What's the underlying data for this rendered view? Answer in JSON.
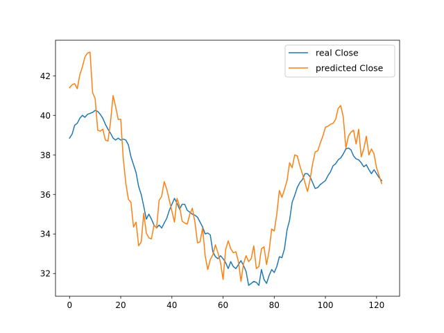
{
  "chart_data": {
    "type": "line",
    "xlim": [
      -5.5,
      129
    ],
    "ylim": [
      30.85,
      43.8
    ],
    "x_ticks": [
      0,
      20,
      40,
      60,
      80,
      100,
      120
    ],
    "y_ticks": [
      32,
      34,
      36,
      38,
      40,
      42
    ],
    "grid": false,
    "legend_position": "top-right",
    "series": [
      {
        "name": "real Close",
        "color": "#1f77b4",
        "values": [
          38.85,
          39.05,
          39.5,
          39.6,
          39.85,
          40.0,
          39.9,
          40.05,
          40.1,
          40.15,
          40.25,
          40.2,
          40.05,
          39.85,
          39.55,
          39.3,
          39.1,
          38.85,
          38.75,
          38.85,
          38.75,
          38.8,
          38.75,
          38.5,
          37.9,
          37.5,
          37.1,
          36.4,
          36.0,
          35.4,
          34.75,
          35.0,
          34.75,
          34.45,
          34.3,
          34.45,
          34.3,
          34.55,
          34.8,
          35.2,
          35.5,
          35.8,
          35.55,
          35.25,
          35.5,
          35.5,
          35.2,
          35.1,
          35.0,
          34.95,
          34.85,
          34.6,
          34.35,
          34.0,
          34.05,
          33.95,
          33.1,
          32.85,
          32.75,
          32.9,
          32.75,
          32.55,
          32.25,
          32.6,
          32.35,
          32.25,
          32.45,
          32.65,
          32.4,
          32.1,
          31.4,
          31.5,
          31.6,
          31.55,
          31.4,
          32.2,
          31.7,
          31.5,
          31.9,
          32.2,
          32.05,
          32.35,
          32.85,
          32.8,
          33.25,
          34.2,
          34.7,
          35.6,
          35.95,
          36.35,
          36.6,
          36.75,
          37.05,
          37.05,
          36.9,
          36.6,
          36.3,
          36.35,
          36.5,
          36.6,
          36.7,
          36.95,
          37.15,
          37.45,
          37.55,
          37.75,
          37.85,
          38.05,
          38.3,
          38.35,
          38.25,
          37.95,
          37.8,
          37.75,
          37.6,
          37.4,
          37.5,
          37.25,
          37.05,
          37.25,
          37.05,
          36.85,
          36.7
        ]
      },
      {
        "name": "predicted Close",
        "color": "#ff7f0e",
        "values": [
          41.4,
          41.55,
          41.6,
          41.35,
          42.05,
          42.45,
          42.95,
          43.15,
          43.2,
          41.15,
          40.85,
          39.25,
          39.2,
          39.3,
          38.75,
          38.7,
          39.65,
          41.0,
          40.45,
          39.8,
          39.8,
          37.8,
          36.55,
          35.75,
          35.6,
          34.35,
          34.6,
          33.4,
          33.6,
          35.05,
          34.05,
          33.8,
          33.75,
          34.45,
          34.3,
          35.7,
          35.9,
          36.65,
          36.25,
          35.7,
          35.15,
          34.6,
          35.8,
          35.4,
          34.65,
          34.55,
          34.5,
          35.0,
          35.3,
          34.6,
          33.55,
          33.6,
          34.3,
          32.9,
          32.2,
          32.7,
          32.95,
          33.45,
          33.05,
          32.55,
          31.7,
          33.2,
          33.65,
          33.25,
          33.05,
          33.1,
          32.6,
          31.6,
          32.5,
          32.9,
          32.6,
          32.75,
          33.4,
          32.25,
          32.35,
          33.25,
          33.35,
          32.45,
          33.15,
          34.25,
          34.15,
          35.0,
          36.2,
          35.85,
          36.25,
          36.7,
          37.6,
          37.35,
          38.0,
          37.95,
          37.45,
          37.05,
          36.6,
          36.15,
          36.75,
          37.55,
          38.15,
          38.2,
          38.6,
          38.95,
          39.4,
          39.45,
          39.55,
          39.6,
          39.8,
          40.35,
          40.5,
          39.9,
          38.35,
          38.95,
          39.15,
          39.25,
          38.55,
          39.3,
          37.9,
          38.3,
          38.95,
          38.0,
          38.3,
          38.05,
          37.35,
          36.95,
          36.55
        ]
      }
    ]
  }
}
